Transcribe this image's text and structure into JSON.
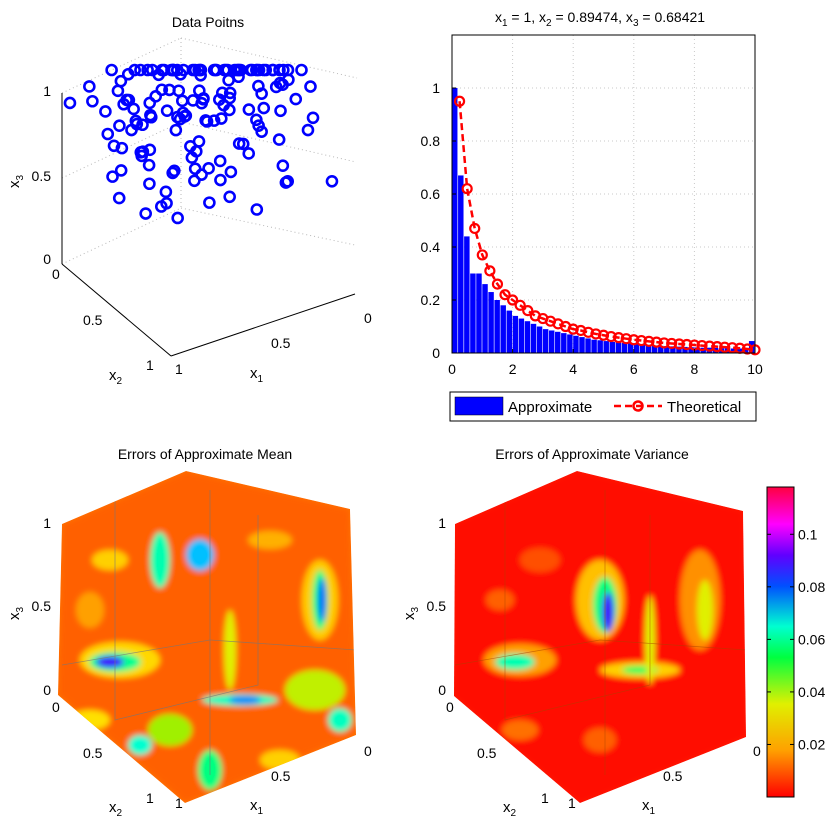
{
  "chart_data": [
    {
      "type": "scatter3d",
      "title": "Data Poitns",
      "xlabel": "x",
      "xlabel_sub": "1",
      "ylabel": "x",
      "ylabel_sub": "2",
      "zlabel": "x",
      "zlabel_sub": "3",
      "x_ticks": [
        "0",
        "0.5",
        "1"
      ],
      "y_ticks": [
        "0",
        "0.5",
        "1"
      ],
      "z_ticks": [
        "0",
        "0.5",
        "1"
      ],
      "marker_color": "#0000ff",
      "n_points": 150
    },
    {
      "type": "bar+line",
      "title_parts": {
        "a": "x",
        "a_sub": "1",
        "a_val": " = 1, x",
        "b_sub": "2",
        "b_val": " = 0.89474, x",
        "c_sub": "3",
        "c_val": " = 0.68421"
      },
      "xlim": [
        0,
        10
      ],
      "ylim": [
        0,
        1.2
      ],
      "x_ticks": [
        "0",
        "2",
        "4",
        "6",
        "8",
        "10"
      ],
      "y_ticks": [
        "0",
        "0.2",
        "0.4",
        "0.6",
        "0.8",
        "1"
      ],
      "grid": true,
      "series": [
        {
          "name": "Approximate",
          "kind": "bar",
          "color": "#0000ff",
          "bin_width": 0.2,
          "x": [
            0.1,
            0.3,
            0.5,
            0.7,
            0.9,
            1.1,
            1.3,
            1.5,
            1.7,
            1.9,
            2.1,
            2.3,
            2.5,
            2.7,
            2.9,
            3.1,
            3.3,
            3.5,
            3.7,
            3.9,
            4.1,
            4.3,
            4.5,
            4.7,
            4.9,
            5.1,
            5.3,
            5.5,
            5.7,
            5.9,
            6.1,
            6.3,
            6.5,
            6.7,
            6.9,
            7.1,
            7.3,
            7.5,
            7.7,
            7.9,
            8.1,
            8.3,
            8.5,
            8.7,
            8.9,
            9.1,
            9.3,
            9.5,
            9.7,
            9.9
          ],
          "values": [
            1.0,
            0.67,
            0.44,
            0.3,
            0.3,
            0.26,
            0.23,
            0.2,
            0.18,
            0.16,
            0.14,
            0.13,
            0.12,
            0.11,
            0.1,
            0.09,
            0.085,
            0.08,
            0.075,
            0.07,
            0.065,
            0.06,
            0.055,
            0.05,
            0.048,
            0.045,
            0.042,
            0.04,
            0.038,
            0.036,
            0.034,
            0.032,
            0.03,
            0.028,
            0.027,
            0.026,
            0.025,
            0.024,
            0.023,
            0.022,
            0.021,
            0.02,
            0.02,
            0.019,
            0.018,
            0.018,
            0.017,
            0.017,
            0.016,
            0.045
          ]
        },
        {
          "name": "Theoretical",
          "kind": "line",
          "color": "#ff0000",
          "marker": "circle",
          "x": [
            0.25,
            0.5,
            0.75,
            1.0,
            1.25,
            1.5,
            1.75,
            2.0,
            2.25,
            2.5,
            2.75,
            3.0,
            3.25,
            3.5,
            3.75,
            4.0,
            4.25,
            4.5,
            4.75,
            5.0,
            5.25,
            5.5,
            5.75,
            6.0,
            6.25,
            6.5,
            6.75,
            7.0,
            7.25,
            7.5,
            7.75,
            8.0,
            8.25,
            8.5,
            8.75,
            9.0,
            9.25,
            9.5,
            9.75,
            10.0
          ],
          "values": [
            0.95,
            0.62,
            0.47,
            0.37,
            0.31,
            0.26,
            0.22,
            0.2,
            0.18,
            0.16,
            0.14,
            0.13,
            0.12,
            0.11,
            0.1,
            0.09,
            0.085,
            0.078,
            0.072,
            0.067,
            0.062,
            0.058,
            0.054,
            0.05,
            0.047,
            0.044,
            0.041,
            0.038,
            0.036,
            0.034,
            0.032,
            0.03,
            0.028,
            0.026,
            0.024,
            0.022,
            0.02,
            0.018,
            0.015,
            0.012
          ]
        }
      ],
      "legend": [
        "Approximate",
        "Theoretical"
      ],
      "legend_position": "below"
    },
    {
      "type": "slice3d",
      "title": "Errors of Approximate Mean",
      "xlabel": "x",
      "xlabel_sub": "1",
      "ylabel": "x",
      "ylabel_sub": "2",
      "zlabel": "x",
      "zlabel_sub": "3",
      "x_ticks": [
        "0",
        "0.5",
        "1"
      ],
      "y_ticks": [
        "0",
        "0.5",
        "1"
      ],
      "z_ticks": [
        "0",
        "0.5",
        "1"
      ],
      "colormap": "hsv"
    },
    {
      "type": "slice3d",
      "title": "Errors of Approximate Variance",
      "xlabel": "x",
      "xlabel_sub": "1",
      "ylabel": "x",
      "ylabel_sub": "2",
      "zlabel": "x",
      "zlabel_sub": "3",
      "x_ticks": [
        "0",
        "0.5",
        "1"
      ],
      "y_ticks": [
        "0",
        "0.5",
        "1"
      ],
      "z_ticks": [
        "0",
        "0.5",
        "1"
      ],
      "colormap": "hsv",
      "colorbar_ticks": [
        "0.02",
        "0.04",
        "0.06",
        "0.08",
        "0.1"
      ],
      "colorbar_tick_values": [
        0.02,
        0.04,
        0.06,
        0.08,
        0.1
      ],
      "colorbar_range": [
        0,
        0.118
      ]
    }
  ]
}
